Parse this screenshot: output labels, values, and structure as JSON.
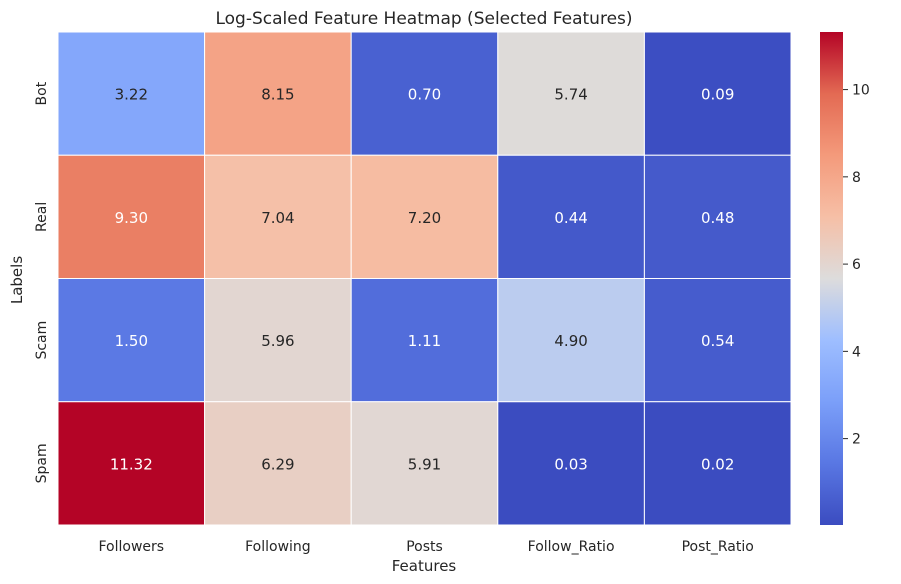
{
  "chart_data": {
    "type": "heatmap",
    "title": "Log-Scaled Feature Heatmap (Selected Features)",
    "xlabel": "Features",
    "ylabel": "Labels",
    "x_categories": [
      "Followers",
      "Following",
      "Posts",
      "Follow_Ratio",
      "Post_Ratio"
    ],
    "y_categories": [
      "Bot",
      "Real",
      "Scam",
      "Spam"
    ],
    "values": [
      [
        3.22,
        8.15,
        0.7,
        5.74,
        0.09
      ],
      [
        9.3,
        7.04,
        7.2,
        0.44,
        0.48
      ],
      [
        1.5,
        5.96,
        1.11,
        4.9,
        0.54
      ],
      [
        11.32,
        6.29,
        5.91,
        0.03,
        0.02
      ]
    ],
    "value_labels": [
      [
        "3.22",
        "8.15",
        "0.70",
        "5.74",
        "0.09"
      ],
      [
        "9.30",
        "7.04",
        "7.20",
        "0.44",
        "0.48"
      ],
      [
        "1.50",
        "5.96",
        "1.11",
        "4.90",
        "0.54"
      ],
      [
        "11.32",
        "6.29",
        "5.91",
        "0.03",
        "0.02"
      ]
    ],
    "colormap": "coolwarm",
    "colorbar": {
      "range": [
        0.02,
        11.32
      ],
      "ticks": [
        2,
        4,
        6,
        8,
        10
      ],
      "tick_labels": [
        "2",
        "4",
        "6",
        "8",
        "10"
      ]
    },
    "grid": false
  }
}
